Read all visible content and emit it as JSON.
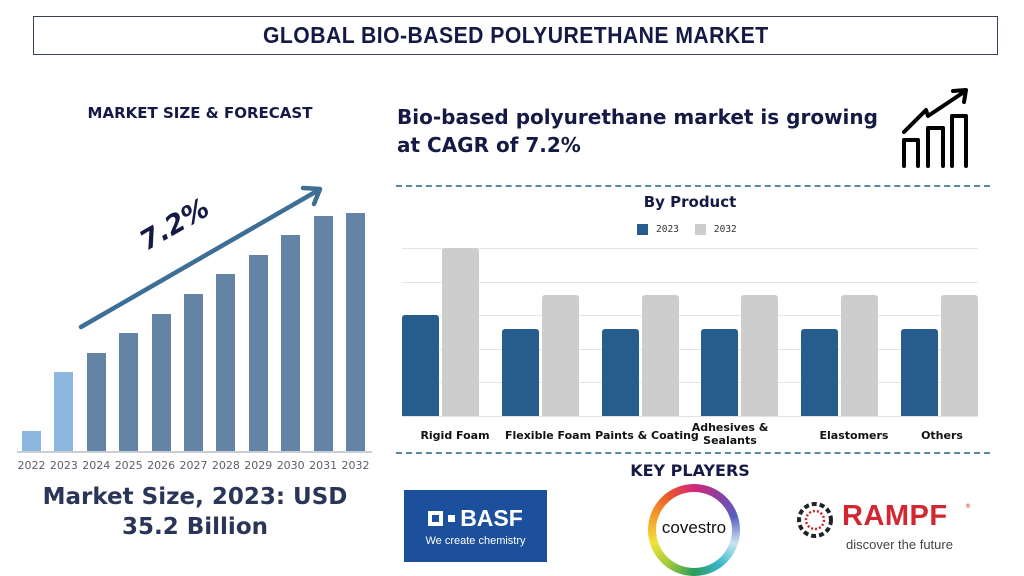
{
  "header": {
    "title": "GLOBAL BIO-BASED POLYURETHANE MARKET"
  },
  "left_panel": {
    "heading": "MARKET SIZE & FORECAST",
    "cagr_label": "7.2%",
    "market_size_line1": "Market Size, 2023: USD",
    "market_size_line2": "35.2 Billion",
    "colors": {
      "historical": "#8db7df",
      "forecast": "#6384a4",
      "arrow": "#3d6f96"
    }
  },
  "right_panel": {
    "headline_line1": "Bio-based polyurethane market is growing",
    "headline_line2": "at CAGR of 7.2%",
    "icon": "growth-chart-icon",
    "by_product_title": "By Product",
    "legend": [
      {
        "label": "2023",
        "color": "#265d8c"
      },
      {
        "label": "2032",
        "color": "#cdcdcd"
      }
    ],
    "key_players_title": "KEY PLAYERS",
    "players": [
      {
        "name": "BASF",
        "tagline": "We create chemistry",
        "color": "#1c4f9c"
      },
      {
        "name": "covestro"
      },
      {
        "name": "RAMPF",
        "tagline": "discover the future",
        "color": "#d22630"
      }
    ]
  },
  "chart_data": [
    {
      "type": "bar",
      "title": "MARKET SIZE & FORECAST",
      "categories": [
        "2022",
        "2023",
        "2024",
        "2025",
        "2026",
        "2027",
        "2028",
        "2029",
        "2030",
        "2031",
        "2032"
      ],
      "values": [
        20,
        79,
        98,
        118,
        137,
        157,
        177,
        196,
        216,
        235,
        238
      ],
      "value_units": "relative bar height (no axis shown)",
      "annotation": "7.2% CAGR arrow",
      "xlabel": "",
      "ylabel": "",
      "grid": false,
      "historical": [
        "2022",
        "2023"
      ]
    },
    {
      "type": "bar",
      "title": "By Product",
      "categories": [
        "Rigid Foam",
        "Flexible Foam",
        "Paints & Coating",
        "Adhesives & Sealants",
        "Elastomers",
        "Others"
      ],
      "series": [
        {
          "name": "2023",
          "values": [
            3.0,
            2.6,
            2.6,
            2.6,
            2.6,
            2.6
          ]
        },
        {
          "name": "2032",
          "values": [
            5.0,
            3.6,
            3.6,
            3.6,
            3.6,
            3.6
          ]
        }
      ],
      "ylim": [
        0,
        5
      ],
      "grid": true,
      "legend_position": "top",
      "xlabel": "",
      "ylabel": ""
    }
  ]
}
